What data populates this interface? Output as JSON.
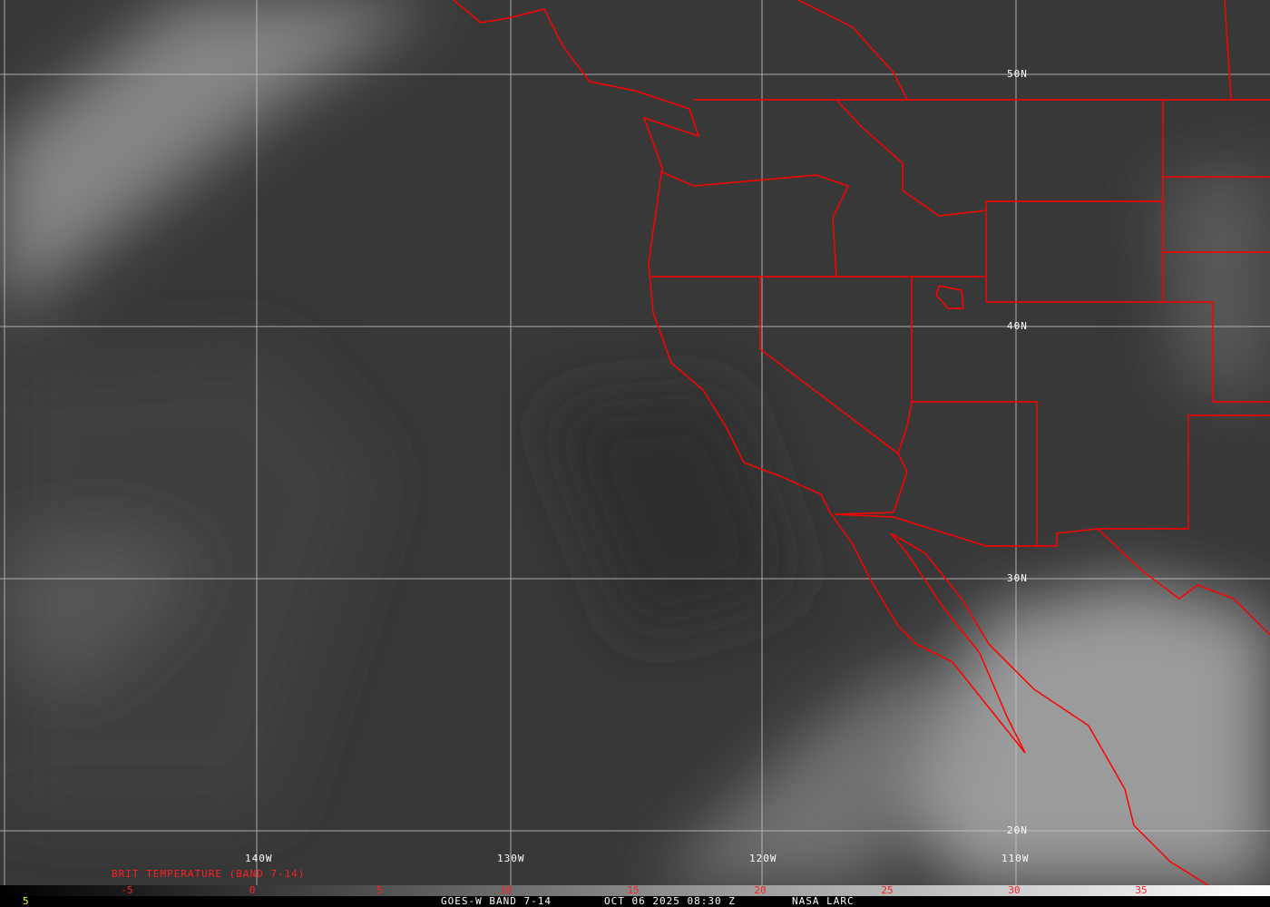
{
  "grid": {
    "latitudes": [
      "50N",
      "40N",
      "30N",
      "20N"
    ],
    "longitudes": [
      "140W",
      "130W",
      "120W",
      "110W"
    ]
  },
  "colorbar": {
    "title": "BRIT TEMPERATURE (BAND 7-14)",
    "ticks": [
      "-5",
      "0",
      "5",
      "10",
      "15",
      "20",
      "25",
      "30",
      "35"
    ],
    "label_color": "#ff2020"
  },
  "footer": {
    "left_value": "5",
    "product": "GOES-W BAND 7-14",
    "datetime": "OCT 06 2025 08:30 Z",
    "source": "NASA LARC"
  },
  "colors": {
    "borders": "#ff0000",
    "grid": "#c8c8c8",
    "background": "#3a3a3a"
  }
}
